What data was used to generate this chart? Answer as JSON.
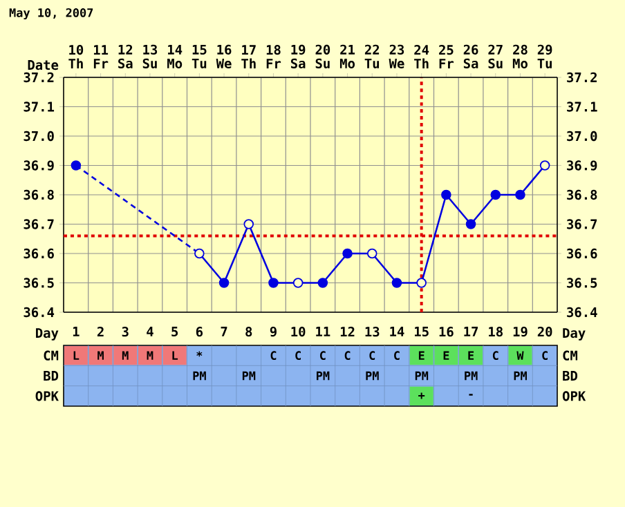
{
  "chart_data": [
    {
      "type": "line",
      "title": "May 10, 2007",
      "x2label": "Date",
      "xlabel": "Day",
      "xlim": [
        0.5,
        20.5
      ],
      "xticks": [
        1,
        2,
        3,
        4,
        5,
        6,
        7,
        8,
        9,
        10,
        11,
        12,
        13,
        14,
        15,
        16,
        17,
        18,
        19,
        20
      ],
      "x2lim": [
        "2007-05-09T12:00",
        "2007-05-29T12:00"
      ],
      "x2ticks": [
        {
          "value": "2007-05-10",
          "label": "10 Th"
        },
        {
          "value": "2007-05-11",
          "label": "11 Fr"
        },
        {
          "value": "2007-05-12",
          "label": "12 Sa"
        },
        {
          "value": "2007-05-13",
          "label": "13 Su"
        },
        {
          "value": "2007-05-14",
          "label": "14 Mo"
        },
        {
          "value": "2007-05-15",
          "label": "15 Tu"
        },
        {
          "value": "2007-05-16",
          "label": "16 We"
        },
        {
          "value": "2007-05-17",
          "label": "17 Th"
        },
        {
          "value": "2007-05-18",
          "label": "18 Fr"
        },
        {
          "value": "2007-05-19",
          "label": "19 Sa"
        },
        {
          "value": "2007-05-20",
          "label": "20 Su"
        },
        {
          "value": "2007-05-21",
          "label": "21 Mo"
        },
        {
          "value": "2007-05-22",
          "label": "22 Tu"
        },
        {
          "value": "2007-05-23",
          "label": "23 We"
        },
        {
          "value": "2007-05-24",
          "label": "24 Th"
        },
        {
          "value": "2007-05-25",
          "label": "25 Fr"
        },
        {
          "value": "2007-05-26",
          "label": "26 Sa"
        },
        {
          "value": "2007-05-27",
          "label": "27 Su"
        },
        {
          "value": "2007-05-28",
          "label": "28 Mo"
        },
        {
          "value": "2007-05-29",
          "label": "29 Tu"
        }
      ],
      "ylim": [
        36.4,
        37.2
      ],
      "yticks": [
        36.4,
        36.5,
        36.6,
        36.7,
        36.8,
        36.9,
        {
          "value": 37,
          "label": "37.0"
        },
        37.1,
        37.2
      ],
      "y2lim": [
        36.4,
        37.2
      ],
      "y2ticks": [
        36.4,
        36.5,
        36.6,
        36.7,
        36.8,
        36.9,
        {
          "value": 37,
          "label": "37.0"
        },
        37.1,
        37.2
      ],
      "grid": true,
      "series": [
        {
          "type": "line",
          "color": "#0000e0",
          "x": [
            6,
            7,
            8,
            9,
            10,
            11,
            12,
            13,
            14,
            15,
            16,
            17,
            18,
            19,
            20
          ],
          "values": [
            36.6,
            36.5,
            36.7,
            36.5,
            36.5,
            36.5,
            36.6,
            36.6,
            36.5,
            36.5,
            36.8,
            36.7,
            36.8,
            36.8,
            36.9
          ]
        },
        {
          "type": "line",
          "color": "#0000e0",
          "line_style": "dashed",
          "x": [
            1,
            6
          ],
          "values": [
            36.9,
            36.6
          ]
        },
        {
          "type": "scatter",
          "marker": "circle",
          "color": "#0000e0",
          "x": [
            1,
            7,
            9,
            11,
            12,
            14,
            16,
            17,
            18,
            19
          ],
          "values": [
            36.9,
            36.5,
            36.5,
            36.5,
            36.6,
            36.5,
            36.8,
            36.7,
            36.8,
            36.8
          ]
        },
        {
          "type": "scatter",
          "marker": "circle",
          "color": "#ffffc8",
          "x": [
            6,
            8,
            10,
            13,
            15,
            20
          ],
          "values": [
            36.6,
            36.7,
            36.5,
            36.6,
            36.5,
            36.9
          ]
        }
      ],
      "ref_lines": [
        {
          "axis": "y",
          "value": 36.66,
          "color": "#e00000",
          "line_style": "dotted"
        },
        {
          "axis": "x",
          "value": 15,
          "color": "#e00000",
          "line_style": "dotted"
        }
      ]
    },
    {
      "type": "heatmap",
      "tick_labels": "y",
      "categories": [
        "1",
        "2",
        "3",
        "4",
        "5",
        "6",
        "7",
        "8",
        "9",
        "10",
        "11",
        "12",
        "13",
        "14",
        "15",
        "16",
        "17",
        "18",
        "19",
        "20"
      ],
      "y_categories": [
        "CM",
        "BD",
        "OPK"
      ],
      "y2_categories": [
        "CM",
        "BD",
        "OPK"
      ],
      "cells": [
        [
          null,
          null,
          null,
          null,
          null,
          null,
          null,
          null,
          null,
          null,
          null,
          null,
          null,
          null,
          null,
          null,
          null,
          null,
          null,
          null
        ],
        [
          null,
          null,
          null,
          null,
          null,
          null,
          null,
          null,
          null,
          null,
          null,
          null,
          null,
          null,
          null,
          null,
          null,
          null,
          null,
          null
        ],
        [
          null,
          null,
          null,
          null,
          null,
          null,
          null,
          null,
          null,
          null,
          null,
          null,
          null,
          null,
          null,
          null,
          null,
          null,
          null,
          null
        ]
      ],
      "cell_labels": [
        [
          "L",
          "M",
          "M",
          "M",
          "L",
          "*",
          null,
          null,
          "C",
          "C",
          "C",
          "C",
          "C",
          "C",
          "E",
          "E",
          "E",
          "C",
          "W",
          "C"
        ],
        [
          null,
          null,
          null,
          null,
          null,
          "PM",
          null,
          "PM",
          null,
          null,
          "PM",
          null,
          "PM",
          null,
          "PM",
          null,
          "PM",
          null,
          "PM",
          null
        ],
        [
          null,
          null,
          null,
          null,
          null,
          null,
          null,
          null,
          null,
          null,
          null,
          null,
          null,
          null,
          "+",
          null,
          "-",
          null,
          null,
          null
        ]
      ],
      "colors": [
        [
          "#f07878",
          "#f07878",
          "#f07878",
          "#f07878",
          "#f07878",
          null,
          null,
          null,
          null,
          null,
          null,
          null,
          null,
          null,
          "#5ce05c",
          "#5ce05c",
          "#5ce05c",
          null,
          "#5ce05c",
          null
        ],
        [
          null,
          null,
          null,
          null,
          null,
          null,
          null,
          null,
          null,
          null,
          null,
          null,
          null,
          null,
          null,
          null,
          null,
          null,
          null,
          null
        ],
        [
          null,
          null,
          null,
          null,
          null,
          null,
          null,
          null,
          null,
          null,
          null,
          null,
          null,
          null,
          "#5ce05c",
          null,
          null,
          null,
          null,
          null
        ]
      ]
    }
  ]
}
